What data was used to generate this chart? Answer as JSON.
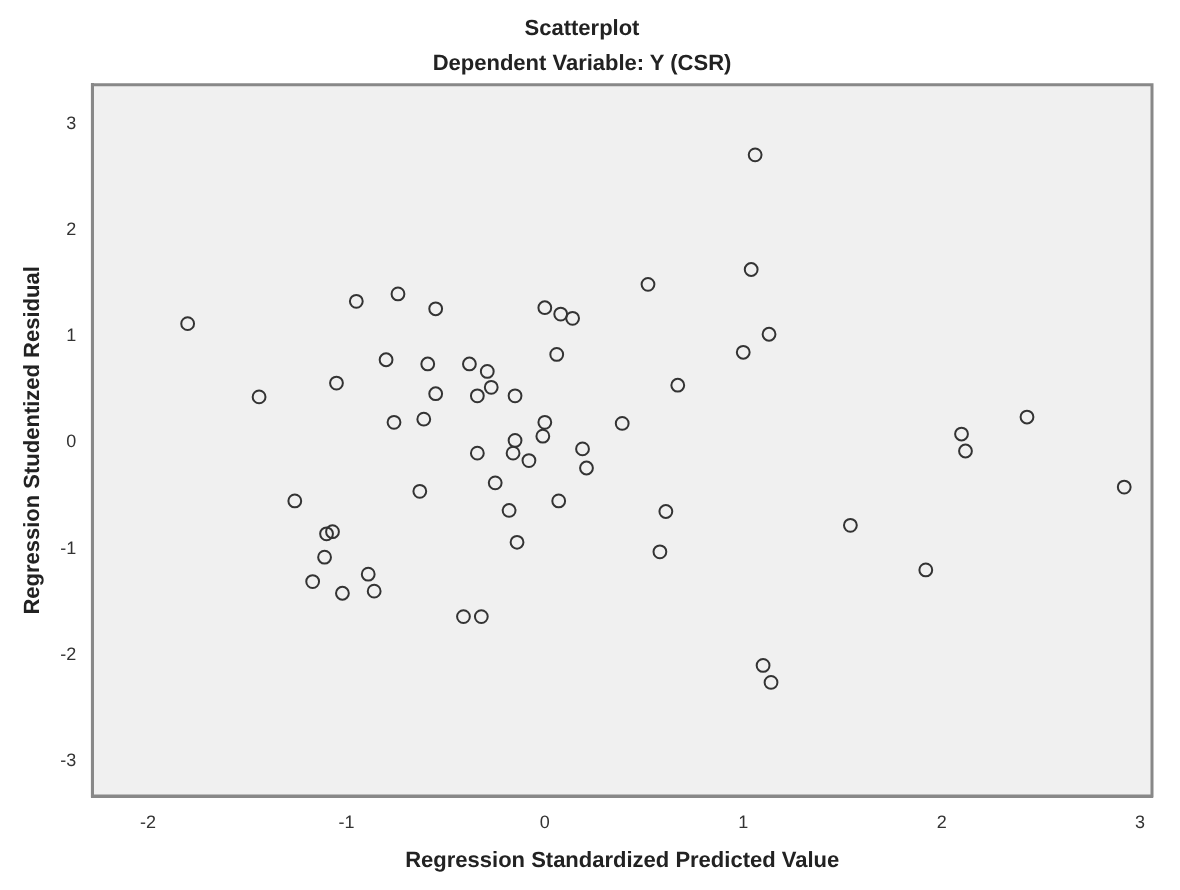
{
  "chart_data": {
    "type": "scatter",
    "title": "Scatterplot",
    "subtitle": "Dependent Variable: Y (CSR)",
    "xlabel": "Regression Standardized Predicted Value",
    "ylabel": "Regression Studentized Residual",
    "x": [
      -1.8,
      -1.44,
      -1.05,
      -0.95,
      -0.74,
      -0.55,
      -0.8,
      -0.59,
      -0.55,
      -0.76,
      -0.61,
      -0.38,
      -0.29,
      -0.27,
      -0.34,
      -0.15,
      -0.34,
      0.0,
      0.08,
      0.14,
      0.06,
      0.0,
      -0.01,
      -0.15,
      -0.16,
      -0.08,
      0.19,
      0.21,
      -1.26,
      -1.07,
      -1.1,
      -1.11,
      -1.17,
      -1.02,
      -0.89,
      -0.86,
      -0.63,
      -0.41,
      -0.32,
      -0.25,
      -0.18,
      -0.14,
      0.07,
      1.06,
      1.04,
      0.52,
      1.13,
      1.0,
      0.67,
      0.39,
      2.43,
      2.1,
      2.12,
      2.92,
      0.61,
      0.58,
      1.54,
      1.92,
      1.1,
      1.14
    ],
    "values": [
      1.12,
      0.43,
      0.56,
      1.33,
      1.4,
      1.26,
      0.78,
      0.74,
      0.46,
      0.19,
      0.22,
      0.74,
      0.67,
      0.52,
      0.44,
      0.44,
      -0.1,
      1.27,
      1.21,
      1.17,
      0.83,
      0.19,
      0.06,
      0.02,
      -0.1,
      -0.17,
      -0.06,
      -0.24,
      -0.55,
      -0.84,
      -0.86,
      -1.08,
      -1.31,
      -1.42,
      -1.24,
      -1.4,
      -0.46,
      -1.64,
      -1.64,
      -0.38,
      -0.64,
      -0.94,
      -0.55,
      2.71,
      1.63,
      1.49,
      1.02,
      0.85,
      0.54,
      0.18,
      0.24,
      0.08,
      -0.08,
      -0.42,
      -0.65,
      -1.03,
      -0.78,
      -1.2,
      -2.1,
      -2.26
    ],
    "color": "#333333",
    "marker": "circle",
    "xlim": [
      -2.28,
      3.06
    ],
    "xticks": [
      -2,
      -1,
      0,
      1,
      2,
      3
    ],
    "ylim": [
      -3.33,
      3.37
    ],
    "yticks": [
      -3,
      -2,
      -1,
      0,
      1,
      2,
      3
    ],
    "grid": false
  }
}
